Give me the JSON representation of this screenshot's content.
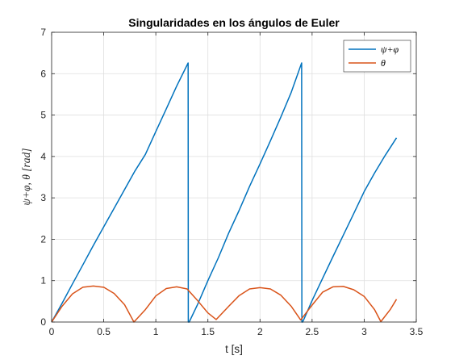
{
  "chart_data": {
    "type": "line",
    "title": "Singularidades en los ángulos de Euler",
    "xlabel": "t [s]",
    "ylabel": "ψ+φ, θ [rad]",
    "xlim": [
      0,
      3.5
    ],
    "ylim": [
      0,
      7
    ],
    "xticks": [
      0,
      0.5,
      1,
      1.5,
      2,
      2.5,
      3,
      3.5
    ],
    "xtick_labels": [
      "0",
      "0.5",
      "1",
      "1.5",
      "2",
      "2.5",
      "3",
      "3.5"
    ],
    "yticks": [
      0,
      1,
      2,
      3,
      4,
      5,
      6,
      7
    ],
    "ytick_labels": [
      "0",
      "1",
      "2",
      "3",
      "4",
      "5",
      "6",
      "7"
    ],
    "grid": true,
    "legend_position": "top-right",
    "series": [
      {
        "name": "ψ+φ",
        "color": "#0072BD",
        "x": [
          0,
          0.1,
          0.2,
          0.3,
          0.4,
          0.5,
          0.6,
          0.7,
          0.8,
          0.9,
          1.0,
          1.1,
          1.2,
          1.31,
          1.312,
          1.32,
          1.4,
          1.5,
          1.6,
          1.7,
          1.8,
          1.9,
          2.0,
          2.1,
          2.2,
          2.3,
          2.4,
          2.402,
          2.41,
          2.5,
          2.6,
          2.7,
          2.8,
          2.9,
          3.0,
          3.1,
          3.2,
          3.31
        ],
        "y": [
          0,
          0.45,
          0.92,
          1.38,
          1.85,
          2.3,
          2.75,
          3.2,
          3.65,
          4.05,
          4.6,
          5.15,
          5.7,
          6.26,
          0,
          0,
          0.42,
          1.0,
          1.55,
          2.15,
          2.7,
          3.28,
          3.82,
          4.38,
          4.95,
          5.55,
          6.26,
          0,
          0,
          0.52,
          1.05,
          1.58,
          2.1,
          2.62,
          3.15,
          3.6,
          4.02,
          4.45
        ]
      },
      {
        "name": "θ",
        "color": "#D95319",
        "x": [
          0,
          0.1,
          0.2,
          0.3,
          0.4,
          0.5,
          0.6,
          0.7,
          0.79,
          0.9,
          1.0,
          1.1,
          1.2,
          1.3,
          1.4,
          1.5,
          1.58,
          1.7,
          1.8,
          1.9,
          2.0,
          2.1,
          2.2,
          2.3,
          2.39,
          2.5,
          2.6,
          2.7,
          2.8,
          2.9,
          3.0,
          3.1,
          3.16,
          3.25,
          3.31
        ],
        "y": [
          0,
          0.38,
          0.68,
          0.84,
          0.87,
          0.84,
          0.69,
          0.42,
          0,
          0.3,
          0.63,
          0.81,
          0.85,
          0.8,
          0.52,
          0.22,
          0.06,
          0.38,
          0.64,
          0.8,
          0.83,
          0.8,
          0.65,
          0.38,
          0.05,
          0.41,
          0.72,
          0.85,
          0.86,
          0.78,
          0.62,
          0.3,
          0.01,
          0.3,
          0.55
        ]
      }
    ]
  }
}
